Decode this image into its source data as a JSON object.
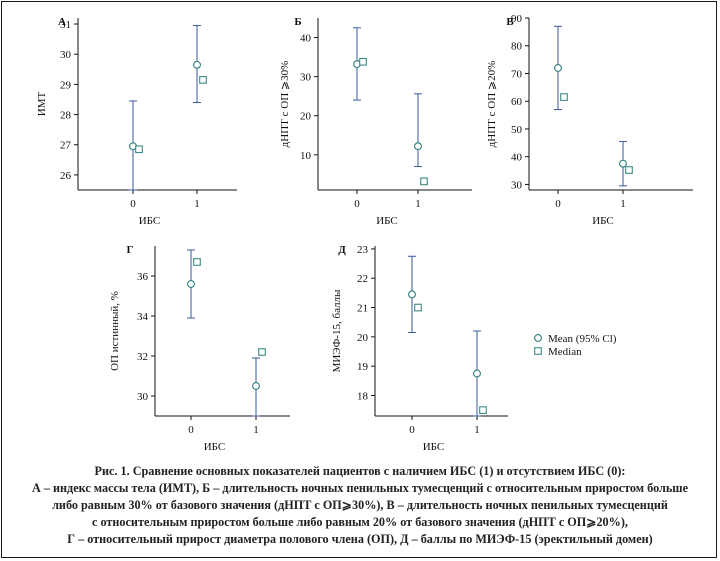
{
  "colors": {
    "mean_marker": "#2e7d7a",
    "median_marker": "#3f8a87",
    "ci_line": "#3a5aa0",
    "axis": "#111111"
  },
  "legend": {
    "mean_label": "Mean (95% Cl)",
    "median_label": "Median"
  },
  "caption": {
    "line1": "Рис. 1. Сравнение основных показателей пациентов с наличием ИБС (1) и отсутствием ИБС (0):",
    "line2": "А – индекс массы тела (ИМТ), Б – длительность ночных пенильных тумесценций с относительным приростом больше",
    "line3": "либо равным 30% от базового значения (дНПТ с ОП⩾30%), В – длительность ночных пенильных тумесценций",
    "line4": "с относительным приростом больше либо равным 20% от базового значения (дНПТ с ОП⩾20%),",
    "line5": "Г – относительный прирост диаметра полового члена (ОП), Д – баллы по МИЭФ-15 (эректильный домен)"
  },
  "chart_data": [
    {
      "type": "scatter",
      "panel": "А",
      "xlabel": "ИБС",
      "ylabel": "ИМТ",
      "categories": [
        "0",
        "1"
      ],
      "ylim": [
        25.5,
        31.2
      ],
      "yticks": [
        26,
        27,
        28,
        29,
        30,
        31
      ],
      "series": [
        {
          "name": "Mean (95% Cl)",
          "values": [
            26.95,
            29.65
          ],
          "ci_low": [
            25.5,
            28.4
          ],
          "ci_high": [
            28.45,
            30.95
          ]
        },
        {
          "name": "Median",
          "values": [
            26.85,
            29.15
          ]
        }
      ]
    },
    {
      "type": "scatter",
      "panel": "Б",
      "xlabel": "ИБС",
      "ylabel": "дНПТ с ОП ⩾30%",
      "categories": [
        "0",
        "1"
      ],
      "ylim": [
        1,
        45
      ],
      "yticks": [
        10,
        20,
        30,
        40
      ],
      "series": [
        {
          "name": "Mean (95% Cl)",
          "values": [
            33.2,
            12.2
          ],
          "ci_low": [
            24,
            7
          ],
          "ci_high": [
            42.5,
            25.6
          ]
        },
        {
          "name": "Median",
          "values": [
            33.8,
            3.2
          ]
        }
      ]
    },
    {
      "type": "scatter",
      "panel": "В",
      "xlabel": "ИБС",
      "ylabel": "дНПТ с ОП ⩾20%",
      "categories": [
        "0",
        "1"
      ],
      "ylim": [
        28,
        90
      ],
      "yticks": [
        30,
        40,
        50,
        60,
        70,
        80,
        90
      ],
      "series": [
        {
          "name": "Mean (95% Cl)",
          "values": [
            72,
            37.5
          ],
          "ci_low": [
            57,
            29.5
          ],
          "ci_high": [
            87,
            45.5
          ]
        },
        {
          "name": "Median",
          "values": [
            61.5,
            35.2
          ]
        }
      ]
    },
    {
      "type": "scatter",
      "panel": "Г",
      "xlabel": "ИБС",
      "ylabel": "ОП истинный, %",
      "categories": [
        "0",
        "1"
      ],
      "ylim": [
        29,
        37.5
      ],
      "yticks": [
        30,
        32,
        34,
        36
      ],
      "series": [
        {
          "name": "Mean (95% Cl)",
          "values": [
            35.6,
            30.5
          ],
          "ci_low": [
            33.9,
            29
          ],
          "ci_high": [
            37.3,
            31.9
          ]
        },
        {
          "name": "Median",
          "values": [
            36.7,
            32.2
          ]
        }
      ]
    },
    {
      "type": "scatter",
      "panel": "Д",
      "xlabel": "ИБС",
      "ylabel": "МИЭФ-15, баллы",
      "categories": [
        "0",
        "1"
      ],
      "ylim": [
        17.3,
        23.1
      ],
      "yticks": [
        18,
        19,
        20,
        21,
        22,
        23
      ],
      "series": [
        {
          "name": "Mean (95% Cl)",
          "values": [
            21.45,
            18.75
          ],
          "ci_low": [
            20.15,
            17.3
          ],
          "ci_high": [
            22.75,
            20.2
          ]
        },
        {
          "name": "Median",
          "values": [
            21,
            17.5
          ]
        }
      ]
    }
  ]
}
